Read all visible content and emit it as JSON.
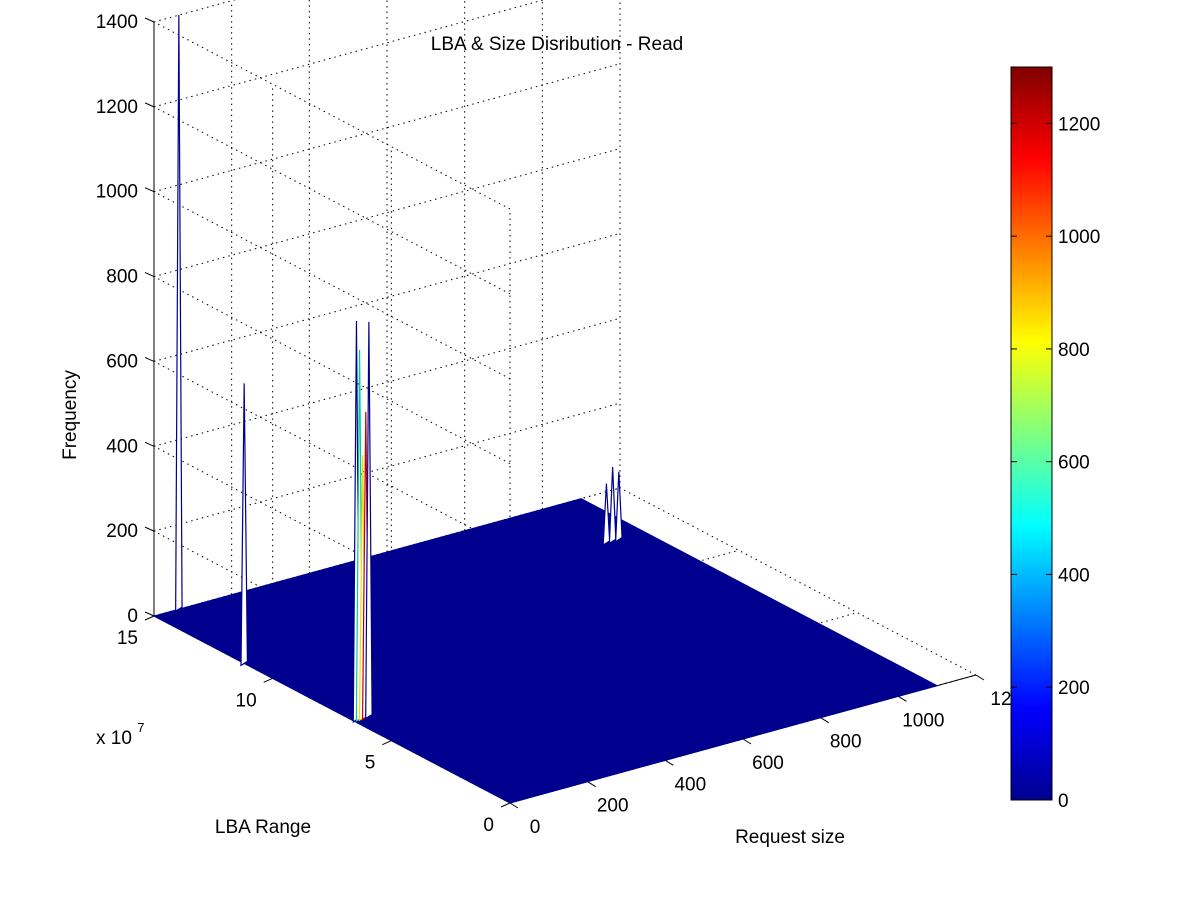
{
  "chart_data": {
    "type": "surface",
    "title": "LBA & Size Disribution - Read",
    "xlabel": "Request size",
    "ylabel": "LBA Range",
    "zlabel": "Frequency",
    "y_multiplier": "x 10",
    "y_multiplier_exp": "7",
    "xlim": [
      0,
      1200
    ],
    "ylim": [
      0,
      15
    ],
    "zlim": [
      0,
      1400
    ],
    "x_ticks": [
      "0",
      "200",
      "400",
      "600",
      "800",
      "1000",
      "12"
    ],
    "y_ticks": [
      "0",
      "5",
      "10",
      "15"
    ],
    "z_ticks": [
      "0",
      "200",
      "400",
      "600",
      "800",
      "1000",
      "1200",
      "1400"
    ],
    "grid": true,
    "colormap": "jet",
    "surface_color": "#00008f",
    "colorbar": {
      "range": [
        0,
        1300
      ],
      "ticks": [
        "0",
        "200",
        "400",
        "600",
        "800",
        "1000",
        "1200"
      ]
    },
    "peaks": [
      {
        "x": 0,
        "y": 11.2,
        "z": 660,
        "color": "#00008f"
      },
      {
        "x": 8,
        "y": 6.6,
        "z": 940,
        "color": "#00008f"
      },
      {
        "x": 16,
        "y": 6.6,
        "z": 870,
        "color": "#00c8a0"
      },
      {
        "x": 24,
        "y": 6.6,
        "z": 620,
        "color": "#ffd800"
      },
      {
        "x": 32,
        "y": 6.6,
        "z": 720,
        "color": "#c00000"
      },
      {
        "x": 40,
        "y": 6.6,
        "z": 930,
        "color": "#00008f"
      },
      {
        "x": 64,
        "y": 15,
        "z": 1400,
        "color": "#00008f"
      },
      {
        "x": 1000,
        "y": 12.3,
        "z": 140,
        "color": "#00008f"
      },
      {
        "x": 1016,
        "y": 12.3,
        "z": 175,
        "color": "#00008f"
      },
      {
        "x": 1032,
        "y": 12.3,
        "z": 160,
        "color": "#00008f"
      }
    ]
  }
}
